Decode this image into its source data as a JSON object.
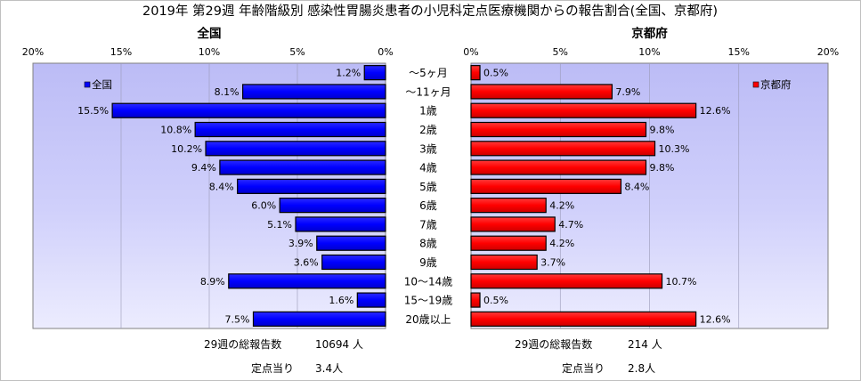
{
  "title": "2019年 第29週 年齢階級別 感染性胃腸炎患者の小児科定点医療機関からの報告割合(全国、京都府)",
  "categories": [
    "～5ヶ月",
    "～11ヶ月",
    "1歳",
    "2歳",
    "3歳",
    "4歳",
    "5歳",
    "6歳",
    "7歳",
    "8歳",
    "9歳",
    "10～14歳",
    "15～19歳",
    "20歳以上"
  ],
  "chart_data": [
    {
      "type": "bar",
      "orientation": "horizontal",
      "panel": "left",
      "x_direction": "reversed",
      "title": "全国",
      "categories": [
        "～5ヶ月",
        "～11ヶ月",
        "1歳",
        "2歳",
        "3歳",
        "4歳",
        "5歳",
        "6歳",
        "7歳",
        "8歳",
        "9歳",
        "10～14歳",
        "15～19歳",
        "20歳以上"
      ],
      "series": [
        {
          "name": "全国",
          "color": "#0000ff",
          "values": [
            1.2,
            8.1,
            15.5,
            10.8,
            10.2,
            9.4,
            8.4,
            6.0,
            5.1,
            3.9,
            3.6,
            8.9,
            1.6,
            7.5
          ],
          "labels": [
            "1.2%",
            "8.1%",
            "15.5%",
            "10.8%",
            "10.2%",
            "9.4%",
            "8.4%",
            "6.0%",
            "5.1%",
            "3.9%",
            "3.6%",
            "8.9%",
            "1.6%",
            "7.5%"
          ]
        }
      ],
      "xlim": [
        0,
        20
      ],
      "x_ticks": [
        "20%",
        "15%",
        "10%",
        "5%",
        "0%"
      ],
      "legend": "top-left",
      "grid": "vertical",
      "plot_bg": "#ccccff"
    },
    {
      "type": "bar",
      "orientation": "horizontal",
      "panel": "right",
      "title": "京都府",
      "categories": [
        "～5ヶ月",
        "～11ヶ月",
        "1歳",
        "2歳",
        "3歳",
        "4歳",
        "5歳",
        "6歳",
        "7歳",
        "8歳",
        "9歳",
        "10～14歳",
        "15～19歳",
        "20歳以上"
      ],
      "series": [
        {
          "name": "京都府",
          "color": "#ff0000",
          "values": [
            0.5,
            7.9,
            12.6,
            9.8,
            10.3,
            9.8,
            8.4,
            4.2,
            4.7,
            4.2,
            3.7,
            10.7,
            0.5,
            12.6
          ],
          "labels": [
            "0.5%",
            "7.9%",
            "12.6%",
            "9.8%",
            "10.3%",
            "9.8%",
            "8.4%",
            "4.2%",
            "4.7%",
            "4.2%",
            "3.7%",
            "10.7%",
            "0.5%",
            "12.6%"
          ]
        }
      ],
      "xlim": [
        0,
        20
      ],
      "x_ticks": [
        "0%",
        "5%",
        "10%",
        "15%",
        "20%"
      ],
      "legend": "top-right",
      "grid": "vertical",
      "plot_bg": "#ccccff"
    }
  ],
  "footer": {
    "national_total_label": "29週の総報告数",
    "national_total_value": "10694 人",
    "national_per_label": "定点当り",
    "national_per_value": "3.4人",
    "kyoto_total_label": "29週の総報告数",
    "kyoto_total_value": "214 人",
    "kyoto_per_label": "定点当り",
    "kyoto_per_value": "2.8人"
  }
}
